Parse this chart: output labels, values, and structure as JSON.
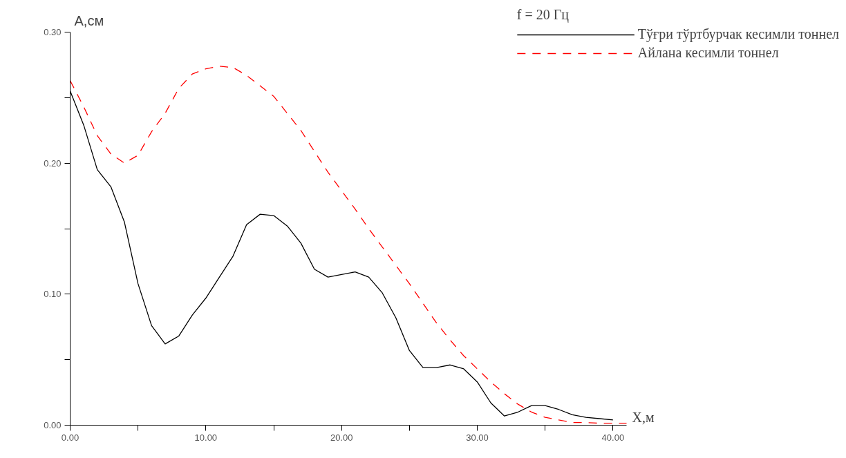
{
  "chart_data": {
    "type": "line",
    "xlabel": "X,м",
    "ylabel": "A,см",
    "legend_title": "f = 20 Гц",
    "xlim": [
      0,
      41
    ],
    "ylim": [
      0,
      0.3
    ],
    "xticks": [
      {
        "value": 0,
        "label": "0.00"
      },
      {
        "value": 5,
        "label": null
      },
      {
        "value": 10,
        "label": "10.00"
      },
      {
        "value": 15,
        "label": null
      },
      {
        "value": 20,
        "label": "20.00"
      },
      {
        "value": 25,
        "label": null
      },
      {
        "value": 30,
        "label": "30.00"
      },
      {
        "value": 35,
        "label": null
      },
      {
        "value": 40,
        "label": "40.00"
      }
    ],
    "yticks": [
      {
        "value": 0,
        "label": "0.00"
      },
      {
        "value": 0.05,
        "label": null
      },
      {
        "value": 0.1,
        "label": "0.10"
      },
      {
        "value": 0.15,
        "label": null
      },
      {
        "value": 0.2,
        "label": "0.20"
      },
      {
        "value": 0.25,
        "label": null
      },
      {
        "value": 0.3,
        "label": "0.30"
      }
    ],
    "grid": false,
    "legend": "top right",
    "marker": "none",
    "series": [
      {
        "name": "Тўғри тўртбурчак кесимли тоннел",
        "color": "#000000",
        "line_style": "solid",
        "x": [
          0,
          1,
          2,
          3,
          4,
          5,
          6,
          7,
          8,
          9,
          10,
          11,
          12,
          13,
          14,
          15,
          16,
          17,
          18,
          19,
          20,
          21,
          22,
          23,
          24,
          25,
          26,
          27,
          28,
          29,
          30,
          31,
          32,
          33,
          34,
          35,
          36,
          37,
          38,
          39,
          40
        ],
        "values": [
          0.255,
          0.229,
          0.195,
          0.182,
          0.155,
          0.108,
          0.076,
          0.062,
          0.068,
          0.084,
          0.097,
          0.113,
          0.129,
          0.153,
          0.161,
          0.16,
          0.152,
          0.139,
          0.119,
          0.113,
          0.115,
          0.117,
          0.113,
          0.101,
          0.082,
          0.057,
          0.044,
          0.044,
          0.046,
          0.043,
          0.033,
          0.017,
          0.007,
          0.01,
          0.015,
          0.015,
          0.012,
          0.008,
          0.006,
          0.005,
          0.004
        ]
      },
      {
        "name": "Айлана кесимли тоннел",
        "color": "#ff0000",
        "line_style": "dashed",
        "x": [
          0,
          1,
          2,
          3,
          4,
          5,
          6,
          7,
          8,
          9,
          10,
          11,
          12,
          13,
          14,
          15,
          16,
          17,
          18,
          19,
          20,
          21,
          22,
          23,
          24,
          25,
          26,
          27,
          28,
          29,
          30,
          31,
          32,
          33,
          34,
          35,
          36,
          37,
          38,
          39,
          40,
          41
        ],
        "values": [
          0.263,
          0.243,
          0.221,
          0.207,
          0.2,
          0.206,
          0.224,
          0.238,
          0.257,
          0.268,
          0.272,
          0.274,
          0.273,
          0.267,
          0.259,
          0.251,
          0.238,
          0.225,
          0.209,
          0.193,
          0.179,
          0.165,
          0.15,
          0.136,
          0.122,
          0.108,
          0.093,
          0.078,
          0.065,
          0.053,
          0.043,
          0.033,
          0.024,
          0.016,
          0.01,
          0.006,
          0.004,
          0.002,
          0.002,
          0.0015,
          0.0015,
          0.0015
        ]
      }
    ]
  }
}
